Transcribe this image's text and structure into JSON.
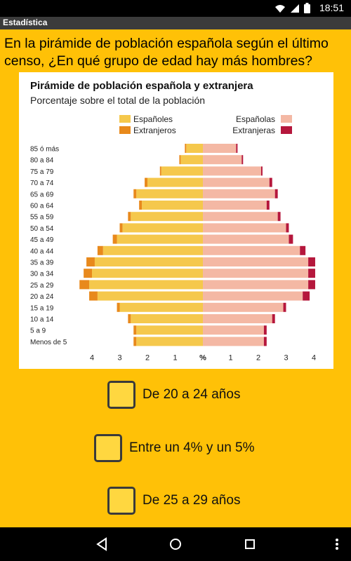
{
  "status_bar": {
    "time": "18:51"
  },
  "app_bar": {
    "title": "Estadística"
  },
  "question": "En la pirámide de población española según el último censo, ¿En qué grupo de edad hay más hombres?",
  "options": [
    {
      "label": "De 20 a 24 años"
    },
    {
      "label": "Entre un 4% y un 5%"
    },
    {
      "label": "De 25 a 29 años"
    }
  ],
  "colors": {
    "background": "#ffc107",
    "male_spanish": "#f5c84c",
    "male_foreign": "#e8891c",
    "female_spanish": "#f4b8a4",
    "female_foreign": "#b5173c"
  },
  "chart_data": {
    "type": "bar",
    "title": "Pirámide de población española y extranjera",
    "subtitle": "Porcentaje sobre el total de la población",
    "legend": {
      "left": [
        "Españoles",
        "Extranjeros"
      ],
      "right": [
        "Españolas",
        "Extranjeras"
      ]
    },
    "categories": [
      "85 ó más",
      "80 a 84",
      "75 a 79",
      "70 a 74",
      "65 a 69",
      "60 a 64",
      "55 a 59",
      "50 a 54",
      "45 a 49",
      "40 a 44",
      "35 a 39",
      "30 a 34",
      "25 a 29",
      "20 a 24",
      "15 a 19",
      "10 a 14",
      "5 a 9",
      "Menos de 5"
    ],
    "series": [
      {
        "name": "Españoles",
        "side": "left",
        "values": [
          0.6,
          0.8,
          1.5,
          2.0,
          2.4,
          2.2,
          2.6,
          2.9,
          3.1,
          3.6,
          3.9,
          4.0,
          4.1,
          3.8,
          3.0,
          2.6,
          2.4,
          2.4
        ]
      },
      {
        "name": "Extranjeros",
        "side": "left",
        "values": [
          0.05,
          0.05,
          0.05,
          0.1,
          0.1,
          0.1,
          0.1,
          0.1,
          0.15,
          0.2,
          0.3,
          0.3,
          0.35,
          0.3,
          0.1,
          0.1,
          0.1,
          0.1
        ]
      },
      {
        "name": "Españolas",
        "side": "right",
        "values": [
          1.2,
          1.4,
          2.1,
          2.4,
          2.6,
          2.3,
          2.7,
          3.0,
          3.1,
          3.5,
          3.8,
          3.8,
          3.8,
          3.6,
          2.9,
          2.5,
          2.2,
          2.2
        ]
      },
      {
        "name": "Extranjeras",
        "side": "right",
        "values": [
          0.05,
          0.05,
          0.05,
          0.1,
          0.1,
          0.1,
          0.1,
          0.1,
          0.15,
          0.2,
          0.25,
          0.25,
          0.25,
          0.25,
          0.1,
          0.1,
          0.1,
          0.1
        ]
      }
    ],
    "x_ticks": [
      "4",
      "3",
      "2",
      "1",
      "%",
      "1",
      "2",
      "3",
      "4"
    ],
    "xlim": [
      0,
      4.2
    ]
  }
}
